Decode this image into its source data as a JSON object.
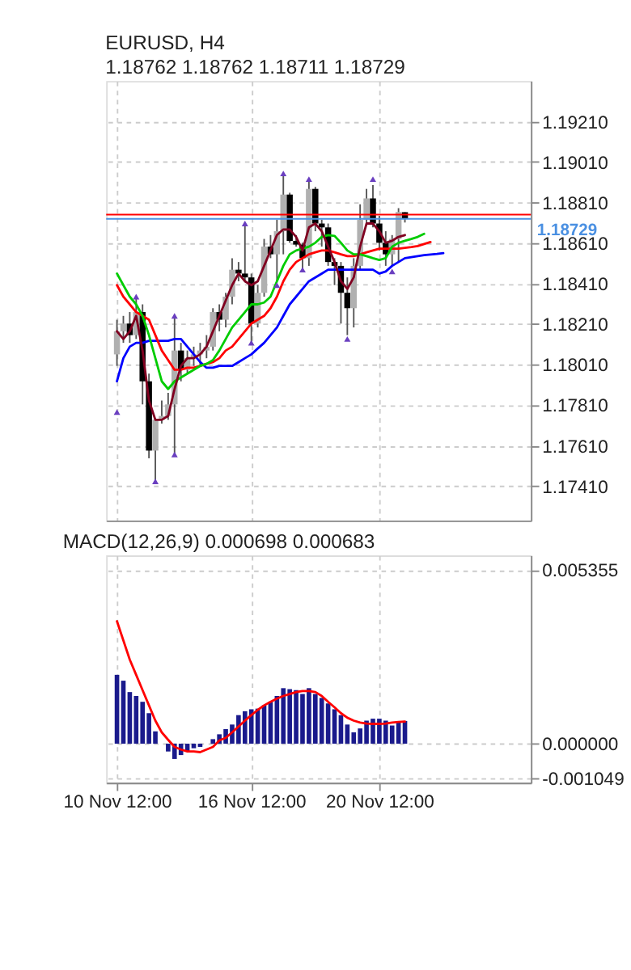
{
  "chart_data": [
    {
      "type": "candlestick",
      "title": "EURUSD, H4",
      "subtitle": "1.18762 1.18762 1.18711 1.18729",
      "tick_labels": "y",
      "grid": true,
      "categories": [
        null,
        null,
        null,
        null,
        null,
        null,
        null,
        null,
        null,
        null,
        null,
        null,
        null,
        null,
        null,
        null,
        null,
        null,
        null,
        null,
        null,
        null,
        null,
        null,
        null,
        null,
        null,
        null,
        null,
        null,
        null,
        null,
        null,
        null,
        null,
        null,
        null,
        null,
        null,
        null,
        null,
        null,
        null,
        null,
        null,
        null,
        null,
        null,
        null,
        null,
        null,
        null,
        null,
        null,
        null,
        null,
        null,
        null,
        null,
        null,
        null,
        null,
        null,
        null
      ],
      "ohlc": [
        [
          1.1806,
          1.18231,
          1.18003,
          1.18174
        ],
        [
          1.18174,
          1.1825,
          1.18117,
          1.18212
        ],
        [
          1.18212,
          1.18269,
          1.18117,
          1.18155
        ],
        [
          1.18155,
          1.18345,
          1.18136,
          1.18269
        ],
        [
          1.18269,
          1.18307,
          1.17813,
          1.17927
        ],
        [
          1.17927,
          1.17965,
          1.17547,
          1.17585
        ],
        [
          1.17585,
          1.17737,
          1.17433,
          1.17737
        ],
        [
          1.17737,
          1.17832,
          1.17718,
          1.17756
        ],
        [
          1.17756,
          1.1787,
          1.17737,
          1.17813
        ],
        [
          1.17813,
          1.1825,
          1.17566,
          1.18079
        ],
        [
          1.18079,
          1.18117,
          1.17927,
          1.17984
        ],
        [
          1.17984,
          1.18079,
          1.17965,
          1.18041
        ],
        [
          1.18041,
          1.18098,
          1.18003,
          1.1806
        ],
        [
          1.1806,
          1.18117,
          1.18003,
          1.18079
        ],
        [
          1.18079,
          1.18155,
          1.18041,
          1.18098
        ],
        [
          1.18098,
          1.18288,
          1.18079,
          1.18269
        ],
        [
          1.18269,
          1.18307,
          1.18174,
          1.18231
        ],
        [
          1.18231,
          1.18364,
          1.18193,
          1.18345
        ],
        [
          1.18345,
          1.18535,
          1.18307,
          1.18478
        ],
        [
          1.18478,
          1.18516,
          1.18421,
          1.18459
        ],
        [
          1.18459,
          1.18706,
          1.18421,
          1.1844
        ],
        [
          1.1844,
          1.18459,
          1.18117,
          1.18212
        ],
        [
          1.18212,
          1.18402,
          1.18193,
          1.18364
        ],
        [
          1.18364,
          1.1863,
          1.18345,
          1.18592
        ],
        [
          1.18592,
          1.18649,
          1.18535,
          1.18554
        ],
        [
          1.18554,
          1.18725,
          1.18421,
          1.18668
        ],
        [
          1.18668,
          1.18953,
          1.18554,
          1.18849
        ],
        [
          1.18849,
          1.18858,
          1.18611,
          1.1862
        ],
        [
          1.1862,
          1.18649,
          1.18592,
          1.18602
        ],
        [
          1.18602,
          1.18611,
          1.18478,
          1.18535
        ],
        [
          1.18535,
          1.18925,
          1.18497,
          1.18877
        ],
        [
          1.18877,
          1.18887,
          1.18668,
          1.18706
        ],
        [
          1.18706,
          1.18725,
          1.18592,
          1.18687
        ],
        [
          1.18687,
          1.18706,
          1.18497,
          1.18516
        ],
        [
          1.18516,
          1.18535,
          1.18402,
          1.18497
        ],
        [
          1.18497,
          1.18516,
          1.18212,
          1.18364
        ],
        [
          1.18364,
          1.1844,
          1.18155,
          1.18288
        ],
        [
          1.18288,
          1.18535,
          1.18193,
          1.18497
        ],
        [
          1.18497,
          1.18801,
          1.18478,
          1.18725
        ],
        [
          1.18725,
          1.18877,
          1.18706,
          1.1883
        ],
        [
          1.1883,
          1.18896,
          1.18687,
          1.18706
        ],
        [
          1.18706,
          1.18744,
          1.18573,
          1.18611
        ],
        [
          1.18611,
          1.18668,
          1.18497,
          1.18554
        ],
        [
          1.18554,
          1.18649,
          1.18497,
          1.1863
        ],
        [
          1.1863,
          1.18782,
          1.18516,
          1.18763
        ],
        [
          1.18762,
          1.18762,
          1.18711,
          1.18729
        ],
        null,
        null,
        null,
        null,
        null,
        null,
        null,
        null,
        null,
        null,
        null,
        null,
        null,
        null,
        null,
        null,
        null,
        null
      ],
      "colors": [
        "#b0b0b0",
        "#b0b0b0",
        "#000000",
        "#b0b0b0",
        "#000000",
        "#000000",
        "#b0b0b0",
        "#b0b0b0",
        "#b0b0b0",
        "#b0b0b0",
        "#000000",
        "#b0b0b0",
        "#b0b0b0",
        "#b0b0b0",
        "#b0b0b0",
        "#b0b0b0",
        "#000000",
        "#b0b0b0",
        "#b0b0b0",
        "#000000",
        "#000000",
        "#000000",
        "#b0b0b0",
        "#b0b0b0",
        "#000000",
        "#b0b0b0",
        "#b0b0b0",
        "#000000",
        "#000000",
        "#000000",
        "#b0b0b0",
        "#000000",
        "#000000",
        "#000000",
        "#000000",
        "#000000",
        "#000000",
        "#b0b0b0",
        "#b0b0b0",
        "#b0b0b0",
        "#000000",
        "#000000",
        "#000000",
        "#b0b0b0",
        "#b0b0b0",
        "#000000",
        null,
        null,
        null,
        null,
        null,
        null,
        null,
        null,
        null,
        null,
        null,
        null,
        null,
        null,
        null,
        null,
        null,
        null
      ],
      "series": [
        {
          "type": "line",
          "color": "#0000ff",
          "values": [
            1.17927,
            1.18041,
            1.18098,
            1.18117,
            1.18117,
            1.18127,
            1.18127,
            1.18127,
            1.18127,
            1.18136,
            1.18136,
            1.18098,
            1.1806,
            1.18022,
            1.17994,
            1.17994,
            1.18003,
            1.18003,
            1.18003,
            1.18022,
            1.18041,
            1.1806,
            1.18089,
            1.18117,
            1.18155,
            1.18193,
            1.1825,
            1.18307,
            1.18345,
            1.18383,
            1.18421,
            1.1844,
            1.18459,
            1.18478,
            1.18478,
            1.18478,
            1.18478,
            1.18478,
            1.18478,
            1.18478,
            1.18478,
            1.18459,
            1.18469,
            1.18497,
            1.18516,
            1.18535,
            1.1854,
            1.18545,
            1.1855,
            1.18553,
            1.18556,
            1.1856,
            null,
            null,
            null,
            null,
            null,
            null,
            null,
            null,
            null,
            null,
            null,
            null
          ]
        },
        {
          "type": "line",
          "color": "#ff0000",
          "values": [
            1.18402,
            1.18345,
            1.18307,
            1.18269,
            1.1825,
            1.18231,
            1.18155,
            1.18079,
            1.18032,
            1.17984,
            1.17984,
            1.17994,
            1.17994,
            1.18003,
            1.18013,
            1.18022,
            1.18041,
            1.18079,
            1.18098,
            1.18136,
            1.18174,
            1.18212,
            1.18231,
            1.1825,
            1.18288,
            1.18345,
            1.18421,
            1.18478,
            1.18516,
            1.18535,
            1.18554,
            1.18564,
            1.18573,
            1.18573,
            1.18564,
            1.18554,
            1.18545,
            1.18545,
            1.18554,
            1.18564,
            1.18573,
            1.18582,
            1.18582,
            1.18582,
            1.18582,
            1.18586,
            1.1859,
            1.18595,
            1.18605,
            1.18615,
            null,
            null,
            null,
            null,
            null,
            null,
            null,
            null,
            null,
            null,
            null,
            null,
            null,
            null
          ]
        },
        {
          "type": "line",
          "color": "#00cc00",
          "values": [
            1.18459,
            1.18402,
            1.18345,
            1.18307,
            1.1825,
            1.18155,
            1.18041,
            1.17927,
            1.17889,
            1.17927,
            1.17946,
            1.17965,
            1.17984,
            1.18003,
            1.18013,
            1.18032,
            1.18079,
            1.18136,
            1.18193,
            1.18231,
            1.18269,
            1.18307,
            1.18307,
            1.18316,
            1.18345,
            1.18421,
            1.18497,
            1.18554,
            1.18573,
            1.18582,
            1.18592,
            1.18611,
            1.1864,
            1.18649,
            1.18645,
            1.18611,
            1.18573,
            1.18554,
            1.18554,
            1.18545,
            1.18535,
            1.18526,
            1.18535,
            1.18592,
            1.18611,
            1.18621,
            1.1863,
            1.1864,
            1.18655,
            null,
            null,
            null,
            null,
            null,
            null,
            null,
            null,
            null,
            null,
            null,
            null,
            null,
            null,
            null
          ]
        },
        {
          "type": "line",
          "color": "#800020",
          "values": [
            1.18174,
            1.18136,
            1.18174,
            1.1825,
            1.18079,
            1.17832,
            1.17737,
            1.17737,
            1.17756,
            1.17889,
            1.18003,
            1.18041,
            1.18041,
            1.1806,
            1.18098,
            1.18174,
            1.1825,
            1.18326,
            1.18402,
            1.18459,
            1.18421,
            1.18402,
            1.18421,
            1.18497,
            1.18573,
            1.18649,
            1.18677,
            1.18677,
            1.1864,
            1.18573,
            1.18687,
            1.18706,
            1.18668,
            1.18592,
            1.18516,
            1.18421,
            1.18383,
            1.1844,
            1.18592,
            1.18706,
            1.18706,
            1.18668,
            1.18611,
            1.18621,
            1.1864,
            1.18649,
            null,
            null,
            null,
            null,
            null,
            null,
            null,
            null,
            null,
            null,
            null,
            null,
            null,
            null,
            null,
            null,
            null,
            null
          ]
        },
        {
          "type": "scatter",
          "marker": "triangle",
          "color": "#6a3fc0",
          "values": [
            null,
            null,
            null,
            1.18345,
            null,
            null,
            null,
            null,
            null,
            1.1825,
            null,
            null,
            null,
            null,
            null,
            null,
            null,
            null,
            null,
            null,
            1.18706,
            null,
            null,
            null,
            null,
            null,
            1.18953,
            null,
            null,
            null,
            1.18925,
            null,
            null,
            null,
            null,
            null,
            null,
            null,
            null,
            null,
            1.18925,
            null,
            null,
            null,
            null,
            null,
            null,
            null,
            null,
            null,
            null,
            null,
            null,
            null,
            null,
            null,
            null,
            null,
            null,
            null,
            null,
            null,
            null,
            null
          ]
        },
        {
          "type": "scatter",
          "marker": "triangle",
          "color": "#6a3fc0",
          "values": [
            1.17775,
            null,
            null,
            null,
            null,
            null,
            1.17433,
            null,
            null,
            1.17566,
            null,
            null,
            null,
            null,
            null,
            null,
            null,
            null,
            null,
            null,
            null,
            1.18117,
            null,
            null,
            null,
            1.18402,
            null,
            null,
            null,
            1.18478,
            null,
            null,
            null,
            null,
            null,
            null,
            1.18136,
            null,
            null,
            null,
            null,
            null,
            null,
            1.18469,
            null,
            null,
            null,
            null,
            null,
            null,
            null,
            null,
            null,
            null,
            null,
            null,
            null,
            null,
            null,
            null,
            null,
            null,
            null,
            null
          ]
        }
      ],
      "ref_lines": [
        {
          "axis": "y",
          "value": 1.1875,
          "color": "#ff0000"
        },
        {
          "axis": "y",
          "value": 1.18729,
          "label": "1.18729",
          "color": "#4a90e2"
        }
      ],
      "ylim": [
        1.1724,
        1.1941
      ],
      "yticks": [
        {
          "value": 1.1741,
          "label": "1.17410"
        },
        {
          "value": 1.1761,
          "label": "1.17610"
        },
        {
          "value": 1.1781,
          "label": "1.17810"
        },
        {
          "value": 1.1801,
          "label": "1.18010"
        },
        {
          "value": 1.1821,
          "label": "1.18210"
        },
        {
          "value": 1.1841,
          "label": "1.18410"
        },
        {
          "value": 1.1861,
          "label": "1.18610"
        },
        {
          "value": 1.1881,
          "label": "1.18810"
        },
        {
          "value": 1.1901,
          "label": "1.19010"
        },
        {
          "value": 1.1921,
          "label": "1.19210"
        }
      ]
    },
    {
      "type": "bar",
      "title": "MACD(12,26,9) 0.000698 0.000683",
      "grid": true,
      "categories": [
        "10 Nov 12:00",
        null,
        null,
        null,
        null,
        null,
        null,
        null,
        null,
        null,
        null,
        null,
        null,
        null,
        null,
        null,
        null,
        null,
        null,
        null,
        null,
        "16 Nov 12:00",
        null,
        null,
        null,
        null,
        null,
        null,
        null,
        null,
        null,
        null,
        null,
        null,
        null,
        null,
        null,
        null,
        null,
        null,
        null,
        "20 Nov 12:00",
        null,
        null,
        null,
        null,
        null,
        null,
        null,
        null,
        null,
        null,
        null,
        null,
        null,
        null,
        null,
        null,
        null,
        null,
        null,
        null,
        null,
        null
      ],
      "series": [
        {
          "type": "bar",
          "color": "#1a1a8c",
          "values": [
            0.00212,
            0.00194,
            0.00159,
            0.00147,
            0.00129,
            0.00094,
            0.00038,
            0,
            -0.00024,
            -0.00047,
            -0.00035,
            -0.00024,
            -0.00014,
            -0.0001,
            0,
            0.00014,
            0.00029,
            0.00045,
            0.00059,
            0.00088,
            0.001,
            0.00106,
            0.00108,
            0.00118,
            0.00129,
            0.00147,
            0.00171,
            0.00168,
            0.00165,
            0.00153,
            0.00171,
            0.00153,
            0.00141,
            0.00124,
            0.00106,
            0.00088,
            0.00059,
            0.00035,
            0.00047,
            0.00071,
            0.00077,
            0.00077,
            0.00071,
            0.00056,
            0.00065,
            0.0007,
            null,
            null,
            null,
            null,
            null,
            null,
            null,
            null,
            null,
            null,
            null,
            null,
            null,
            null,
            null,
            null,
            null,
            null
          ]
        },
        {
          "type": "line",
          "color": "#ff0000",
          "values": [
            0.00377,
            0.00318,
            0.00259,
            0.00212,
            0.00165,
            0.00118,
            0.00071,
            0.00035,
            0.00012,
            -0.0001,
            -0.00018,
            -0.00024,
            -0.00024,
            -0.00026,
            -0.00018,
            -0.0001,
            0.0001,
            0.00018,
            0.00035,
            0.00053,
            0.00071,
            0.00088,
            0.00104,
            0.00118,
            0.00129,
            0.00139,
            0.00147,
            0.00153,
            0.00159,
            0.00162,
            0.00162,
            0.00159,
            0.00147,
            0.00129,
            0.00112,
            0.00094,
            0.0008,
            0.00071,
            0.00065,
            0.00062,
            0.00061,
            0.00061,
            0.00062,
            0.00065,
            0.00067,
            0.00068,
            null,
            null,
            null,
            null,
            null,
            null,
            null,
            null,
            null,
            null,
            null,
            null,
            null,
            null,
            null,
            null,
            null,
            null
          ]
        }
      ],
      "ylim": [
        -0.0012,
        0.0058
      ],
      "yticks": [
        {
          "value": -0.001049,
          "label": "-0.001049"
        },
        {
          "value": 0,
          "label": "0.000000"
        },
        {
          "value": 0.005355,
          "label": "0.005355"
        }
      ]
    }
  ]
}
